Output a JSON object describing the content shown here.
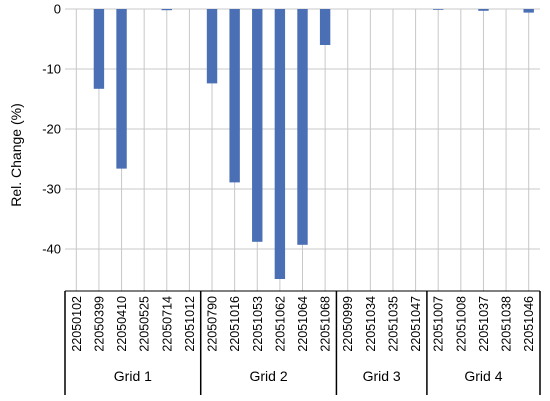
{
  "chart_data": {
    "type": "bar",
    "ylabel": "Rel. Change (%)",
    "ylim": [
      -47,
      0
    ],
    "yticks": [
      0,
      -10,
      -20,
      -30,
      -40
    ],
    "grid": true,
    "bar_color": "#4a6fb5",
    "categories": [
      "22050102",
      "22050399",
      "22050410",
      "22050525",
      "22050714",
      "22051012",
      "22050790",
      "22051016",
      "22051053",
      "22051062",
      "22051064",
      "22051068",
      "22050999",
      "22051034",
      "22051035",
      "22051047",
      "22051007",
      "22051008",
      "22051037",
      "22051038",
      "22051046"
    ],
    "values": [
      0,
      -13.3,
      -26.6,
      0,
      -0.2,
      0,
      -12.4,
      -28.9,
      -38.8,
      -45.0,
      -39.3,
      -6.0,
      0,
      0,
      0,
      0,
      -0.1,
      0,
      -0.3,
      0,
      -0.6
    ],
    "groups": [
      {
        "label": "Grid 1",
        "count": 6
      },
      {
        "label": "Grid 2",
        "count": 6
      },
      {
        "label": "Grid 3",
        "count": 4
      },
      {
        "label": "Grid 4",
        "count": 5
      }
    ]
  }
}
